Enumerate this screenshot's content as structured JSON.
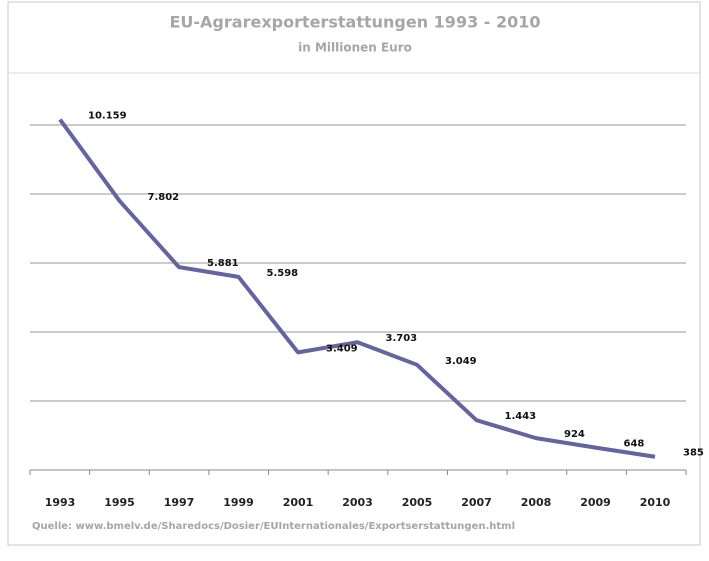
{
  "chart_data": {
    "type": "line",
    "title": "EU-Agrarexporterstattungen 1993 - 2010",
    "subtitle": "in Millionen Euro",
    "source": "Quelle: www.bmelv.de/Sharedocs/Dosier/EUInternationales/Exportserstattungen.html",
    "categories": [
      "1993",
      "1995",
      "1997",
      "1999",
      "2001",
      "2003",
      "2005",
      "2007",
      "2008",
      "2009",
      "2010"
    ],
    "values": [
      10159,
      7802,
      5881,
      5598,
      3409,
      3703,
      3049,
      1443,
      924,
      648,
      385
    ],
    "value_labels": [
      "10.159",
      "7.802",
      "5.881",
      "5.598",
      "3.409",
      "3.703",
      "3.049",
      "1.443",
      "924",
      "648",
      "385"
    ],
    "color": "#6464a0",
    "ylim": [
      0,
      10000
    ],
    "yticks": [
      0,
      2000,
      4000,
      6000,
      8000,
      10000
    ],
    "grid": true
  }
}
